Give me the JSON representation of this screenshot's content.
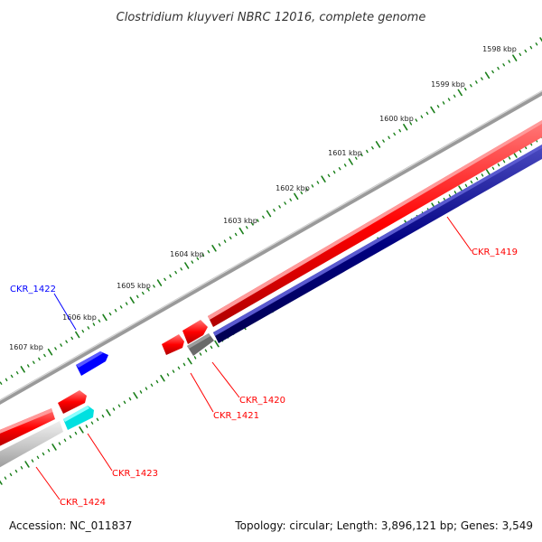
{
  "title": "Clostridium kluyveri NBRC 12016, complete genome",
  "footer": {
    "accession": "Accession: NC_011837",
    "summary": "Topology: circular; Length: 3,896,121 bp; Genes: 3,549"
  },
  "colors": {
    "forward_gene": "#ff0000",
    "reverse_gene": "#000080",
    "pseudo_gene": "#808080",
    "highlight_blue": "#0000ff",
    "highlight_cyan": "#00ffff",
    "tick": "#1a7f1a",
    "backbone": "#808080"
  },
  "ruler": {
    "unit": "kbp",
    "labels": [
      "1598 kbp",
      "1599 kbp",
      "1600 kbp",
      "1601 kbp",
      "1602 kbp",
      "1603 kbp",
      "1604 kbp",
      "1605 kbp",
      "1606 kbp",
      "1607 kbp"
    ]
  },
  "genes": [
    {
      "id": "CKR_1419",
      "color": "#ff0000"
    },
    {
      "id": "CKR_1420",
      "color": "#ff0000"
    },
    {
      "id": "CKR_1421",
      "color": "#ff0000"
    },
    {
      "id": "CKR_1422",
      "color": "#0000ff"
    },
    {
      "id": "CKR_1423",
      "color": "#ff0000"
    },
    {
      "id": "CKR_1424",
      "color": "#ff0000"
    }
  ]
}
